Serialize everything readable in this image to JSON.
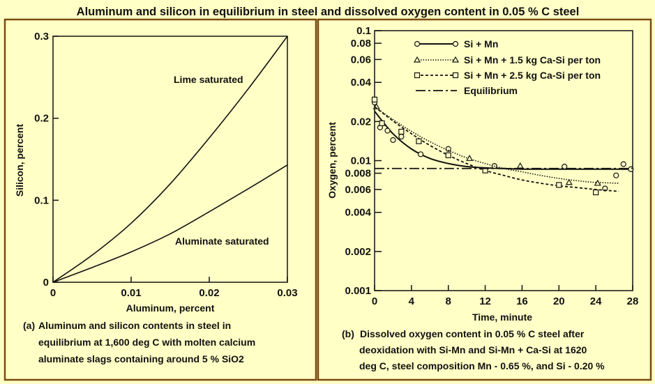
{
  "title": "Aluminum and silicon in equilibrium in steel and dissolved oxygen content in 0.05 % C steel",
  "colors": {
    "background": "#FFFFC6",
    "border": "#7A4A10",
    "ink": "#111111"
  },
  "chart_data": [
    {
      "type": "line",
      "panel": "a",
      "xlabel": "Aluminum, percent",
      "ylabel": "Silicon, percent",
      "xlim": [
        0,
        0.03
      ],
      "ylim": [
        0,
        0.3
      ],
      "xticks": [
        "0",
        "0.01",
        "0.02",
        "0.03"
      ],
      "yticks": [
        "0",
        "0.1",
        "0.2",
        "0.3"
      ],
      "x": [
        0,
        0.005,
        0.01,
        0.015,
        0.02,
        0.025,
        0.03
      ],
      "series": [
        {
          "name": "Lime saturated",
          "values": [
            0,
            0.033,
            0.072,
            0.12,
            0.176,
            0.236,
            0.3
          ]
        },
        {
          "name": "Aluminate saturated",
          "values": [
            0,
            0.018,
            0.037,
            0.059,
            0.086,
            0.114,
            0.143
          ]
        }
      ],
      "caption": [
        "(a)",
        "Aluminum and silicon contents in steel in",
        "equilibrium at 1,600 deg C with molten calcium",
        "aluminate slags containing around 5 % SiO2"
      ]
    },
    {
      "type": "line",
      "panel": "b",
      "xlabel": "Time, minute",
      "ylabel": "Oxygen, percent",
      "xlim": [
        0,
        28
      ],
      "ylim": [
        0.001,
        0.1
      ],
      "yscale": "log",
      "xticks": [
        "0",
        "4",
        "8",
        "12",
        "16",
        "20",
        "24",
        "28"
      ],
      "yticks": [
        {
          "v": 0.1,
          "t": "0.1"
        },
        {
          "v": 0.08,
          "t": "0.08"
        },
        {
          "v": 0.06,
          "t": "0.06"
        },
        {
          "v": 0.04,
          "t": "0.04"
        },
        {
          "v": 0.02,
          "t": "0.02"
        },
        {
          "v": 0.01,
          "t": "0.01"
        },
        {
          "v": 0.008,
          "t": "0.008"
        },
        {
          "v": 0.006,
          "t": "0.006"
        },
        {
          "v": 0.004,
          "t": "0.004"
        },
        {
          "v": 0.002,
          "t": "0.002"
        },
        {
          "v": 0.001,
          "t": "0.001"
        }
      ],
      "legend_position": "top-right",
      "series": [
        {
          "name": "Si + Mn",
          "style": "solid",
          "marker": "circle",
          "curve_t": [
            0,
            2,
            4,
            6,
            8,
            10,
            12,
            14,
            16,
            18,
            20,
            22,
            24,
            26,
            28
          ],
          "curve": [
            0.024,
            0.0161,
            0.0123,
            0.0104,
            0.0095,
            0.009,
            0.0088,
            0.0087,
            0.0086,
            0.0086,
            0.0086,
            0.0086,
            0.0086,
            0.0086,
            0.0086
          ],
          "points": [
            [
              0,
              0.028
            ],
            [
              0.6,
              0.018
            ],
            [
              1.4,
              0.017
            ],
            [
              2.0,
              0.0144
            ],
            [
              2.9,
              0.0153
            ],
            [
              5,
              0.0112
            ],
            [
              8,
              0.0123
            ],
            [
              13,
              0.0091
            ],
            [
              20.6,
              0.009
            ],
            [
              25,
              0.0061
            ],
            [
              26.2,
              0.0077
            ],
            [
              27,
              0.0094
            ],
            [
              27.8,
              0.0086
            ]
          ]
        },
        {
          "name": "Si + Mn + 1.5 kg Ca-Si per ton",
          "style": "dotted",
          "marker": "triangle",
          "curve_t": [
            0,
            2,
            4,
            6,
            8,
            10,
            12,
            14,
            16,
            18,
            20,
            22,
            24,
            26.5
          ],
          "curve": [
            0.026,
            0.0207,
            0.0168,
            0.014,
            0.012,
            0.0105,
            0.0095,
            0.0087,
            0.0082,
            0.0077,
            0.0073,
            0.007,
            0.0068,
            0.0067
          ],
          "points": [
            [
              0.2,
              0.026
            ],
            [
              10.3,
              0.0104
            ],
            [
              15.8,
              0.0091
            ],
            [
              21.1,
              0.0068
            ],
            [
              24.2,
              0.0067
            ]
          ]
        },
        {
          "name": "Si + Mn + 2.5 kg Ca-Si per ton",
          "style": "dashed",
          "marker": "square",
          "curve_t": [
            0,
            2,
            4,
            6,
            8,
            10,
            12,
            14,
            16,
            18,
            20,
            22,
            24,
            26.5
          ],
          "curve": [
            0.026,
            0.0202,
            0.0161,
            0.0131,
            0.011,
            0.0095,
            0.0084,
            0.0077,
            0.0071,
            0.0067,
            0.0064,
            0.0062,
            0.006,
            0.0058
          ],
          "points": [
            [
              0,
              0.0295
            ],
            [
              0.8,
              0.0194
            ],
            [
              2.9,
              0.0167
            ],
            [
              4.8,
              0.0141
            ],
            [
              8,
              0.011
            ],
            [
              12,
              0.0084
            ],
            [
              20,
              0.0065
            ],
            [
              24,
              0.0057
            ]
          ]
        },
        {
          "name": "Equilibrium",
          "style": "dashdot",
          "marker": "none",
          "curve_t": [
            0,
            28
          ],
          "curve": [
            0.0087,
            0.0087
          ],
          "points": []
        }
      ],
      "caption": [
        "(b)",
        "Dissolved oxygen content in 0.05 % C steel after",
        "deoxidation with Si-Mn and Si-Mn + Ca-Si at 1620",
        "deg C, steel composition Mn - 0.65 %, and Si - 0.20 %"
      ]
    }
  ]
}
